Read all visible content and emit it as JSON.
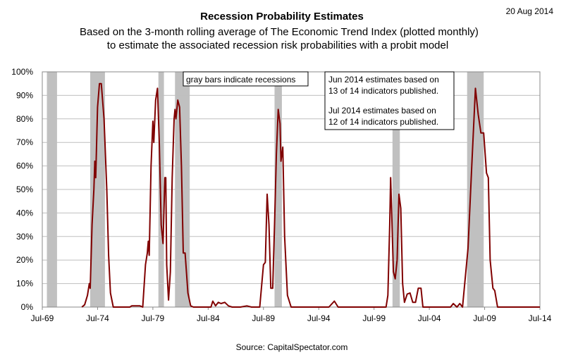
{
  "date_stamp": "20 Aug 2014",
  "source": "Source:  CapitalSpectator.com",
  "annotations": {
    "recession_note": "gray bars indicate recessions",
    "estimates_line1": "Jun 2014  estimates based on",
    "estimates_line2": "13 of 14 indicators published.",
    "estimates_line3": "Jul 2014 estimates based on",
    "estimates_line4": "12 of 14 indicators published."
  },
  "colors": {
    "line": "#800000",
    "recession": "#c0c0c0",
    "grid": "#bfbfbf"
  },
  "chart_data": {
    "type": "line",
    "title": "Recession Probability Estimates",
    "subtitle_line1": "Based on the 3-month rolling average of The Economic Trend Index (plotted monthly)",
    "subtitle_line2": "to estimate the associated recession risk probabilities with a probit model",
    "xlabel": "",
    "ylabel": "",
    "xlim": [
      "1969-07",
      "2014-07"
    ],
    "ylim": [
      0,
      1
    ],
    "y_ticks": [
      "0%",
      "10%",
      "20%",
      "30%",
      "40%",
      "50%",
      "60%",
      "70%",
      "80%",
      "90%",
      "100%"
    ],
    "x_ticks": [
      {
        "label": "Jul-69",
        "date": "1969-07"
      },
      {
        "label": "Jul-74",
        "date": "1974-07"
      },
      {
        "label": "Jul-79",
        "date": "1979-07"
      },
      {
        "label": "Jul-84",
        "date": "1984-07"
      },
      {
        "label": "Jul-89",
        "date": "1989-07"
      },
      {
        "label": "Jul-94",
        "date": "1994-07"
      },
      {
        "label": "Jul-99",
        "date": "1999-07"
      },
      {
        "label": "Jul-04",
        "date": "2004-07"
      },
      {
        "label": "Jul-09",
        "date": "2009-07"
      },
      {
        "label": "Jul-14",
        "date": "2014-07"
      }
    ],
    "grid": true,
    "legend": "none",
    "recessions": [
      {
        "start": "1969-12",
        "end": "1970-11"
      },
      {
        "start": "1973-11",
        "end": "1975-03"
      },
      {
        "start": "1980-01",
        "end": "1980-07"
      },
      {
        "start": "1981-07",
        "end": "1982-11"
      },
      {
        "start": "1990-07",
        "end": "1991-03"
      },
      {
        "start": "2001-03",
        "end": "2001-11"
      },
      {
        "start": "2007-12",
        "end": "2009-06"
      }
    ],
    "series": [
      {
        "points": [
          [
            "1973-02",
            0.0
          ],
          [
            "1973-05",
            0.01
          ],
          [
            "1973-08",
            0.05
          ],
          [
            "1973-10",
            0.1
          ],
          [
            "1973-11",
            0.08
          ],
          [
            "1974-01",
            0.35
          ],
          [
            "1974-03",
            0.5
          ],
          [
            "1974-04",
            0.62
          ],
          [
            "1974-05",
            0.55
          ],
          [
            "1974-07",
            0.85
          ],
          [
            "1974-09",
            0.95
          ],
          [
            "1974-11",
            0.95
          ],
          [
            "1975-02",
            0.8
          ],
          [
            "1975-05",
            0.5
          ],
          [
            "1975-07",
            0.22
          ],
          [
            "1975-09",
            0.06
          ],
          [
            "1975-12",
            0.0
          ],
          [
            "1977-06",
            0.0
          ],
          [
            "1977-08",
            0.005
          ],
          [
            "1978-05",
            0.005
          ],
          [
            "1978-08",
            0.0
          ],
          [
            "1978-11",
            0.18
          ],
          [
            "1979-01",
            0.23
          ],
          [
            "1979-02",
            0.28
          ],
          [
            "1979-03",
            0.22
          ],
          [
            "1979-05",
            0.6
          ],
          [
            "1979-07",
            0.79
          ],
          [
            "1979-08",
            0.7
          ],
          [
            "1979-10",
            0.88
          ],
          [
            "1979-12",
            0.93
          ],
          [
            "1980-02",
            0.7
          ],
          [
            "1980-04",
            0.35
          ],
          [
            "1980-06",
            0.27
          ],
          [
            "1980-08",
            0.55
          ],
          [
            "1980-09",
            0.55
          ],
          [
            "1980-10",
            0.18
          ],
          [
            "1980-12",
            0.03
          ],
          [
            "1981-02",
            0.15
          ],
          [
            "1981-04",
            0.55
          ],
          [
            "1981-06",
            0.8
          ],
          [
            "1981-07",
            0.84
          ],
          [
            "1981-08",
            0.8
          ],
          [
            "1981-10",
            0.88
          ],
          [
            "1981-12",
            0.85
          ],
          [
            "1982-02",
            0.6
          ],
          [
            "1982-04",
            0.23
          ],
          [
            "1982-06",
            0.23
          ],
          [
            "1982-09",
            0.06
          ],
          [
            "1982-12",
            0.005
          ],
          [
            "1983-03",
            0.0
          ],
          [
            "1984-10",
            0.0
          ],
          [
            "1984-12",
            0.025
          ],
          [
            "1985-03",
            0.005
          ],
          [
            "1985-06",
            0.02
          ],
          [
            "1985-09",
            0.015
          ],
          [
            "1986-01",
            0.02
          ],
          [
            "1986-05",
            0.005
          ],
          [
            "1986-09",
            0.0
          ],
          [
            "1987-06",
            0.0
          ],
          [
            "1988-01",
            0.005
          ],
          [
            "1988-06",
            0.0
          ],
          [
            "1989-03",
            0.0
          ],
          [
            "1989-07",
            0.18
          ],
          [
            "1989-09",
            0.19
          ],
          [
            "1989-11",
            0.48
          ],
          [
            "1990-01",
            0.35
          ],
          [
            "1990-03",
            0.08
          ],
          [
            "1990-05",
            0.08
          ],
          [
            "1990-07",
            0.35
          ],
          [
            "1990-09",
            0.65
          ],
          [
            "1990-11",
            0.84
          ],
          [
            "1991-01",
            0.78
          ],
          [
            "1991-02",
            0.62
          ],
          [
            "1991-04",
            0.68
          ],
          [
            "1991-06",
            0.3
          ],
          [
            "1991-09",
            0.05
          ],
          [
            "1992-01",
            0.0
          ],
          [
            "1995-06",
            0.0
          ],
          [
            "1995-12",
            0.025
          ],
          [
            "1996-04",
            0.0
          ],
          [
            "2000-08",
            0.0
          ],
          [
            "2000-10",
            0.05
          ],
          [
            "2000-12",
            0.35
          ],
          [
            "2001-01",
            0.55
          ],
          [
            "2001-02",
            0.42
          ],
          [
            "2001-04",
            0.15
          ],
          [
            "2001-06",
            0.12
          ],
          [
            "2001-08",
            0.2
          ],
          [
            "2001-10",
            0.48
          ],
          [
            "2001-12",
            0.42
          ],
          [
            "2002-02",
            0.1
          ],
          [
            "2002-04",
            0.02
          ],
          [
            "2002-07",
            0.055
          ],
          [
            "2002-10",
            0.06
          ],
          [
            "2003-01",
            0.02
          ],
          [
            "2003-04",
            0.02
          ],
          [
            "2003-07",
            0.08
          ],
          [
            "2003-10",
            0.08
          ],
          [
            "2003-12",
            0.0
          ],
          [
            "2006-06",
            0.0
          ],
          [
            "2006-09",
            0.015
          ],
          [
            "2007-01",
            0.0
          ],
          [
            "2007-04",
            0.015
          ],
          [
            "2007-07",
            0.0
          ],
          [
            "2008-01",
            0.25
          ],
          [
            "2008-05",
            0.6
          ],
          [
            "2008-09",
            0.93
          ],
          [
            "2008-12",
            0.82
          ],
          [
            "2009-03",
            0.74
          ],
          [
            "2009-06",
            0.74
          ],
          [
            "2009-09",
            0.57
          ],
          [
            "2009-11",
            0.55
          ],
          [
            "2010-01",
            0.2
          ],
          [
            "2010-04",
            0.08
          ],
          [
            "2010-06",
            0.07
          ],
          [
            "2010-09",
            0.0
          ],
          [
            "2014-07",
            0.0
          ]
        ]
      }
    ]
  }
}
